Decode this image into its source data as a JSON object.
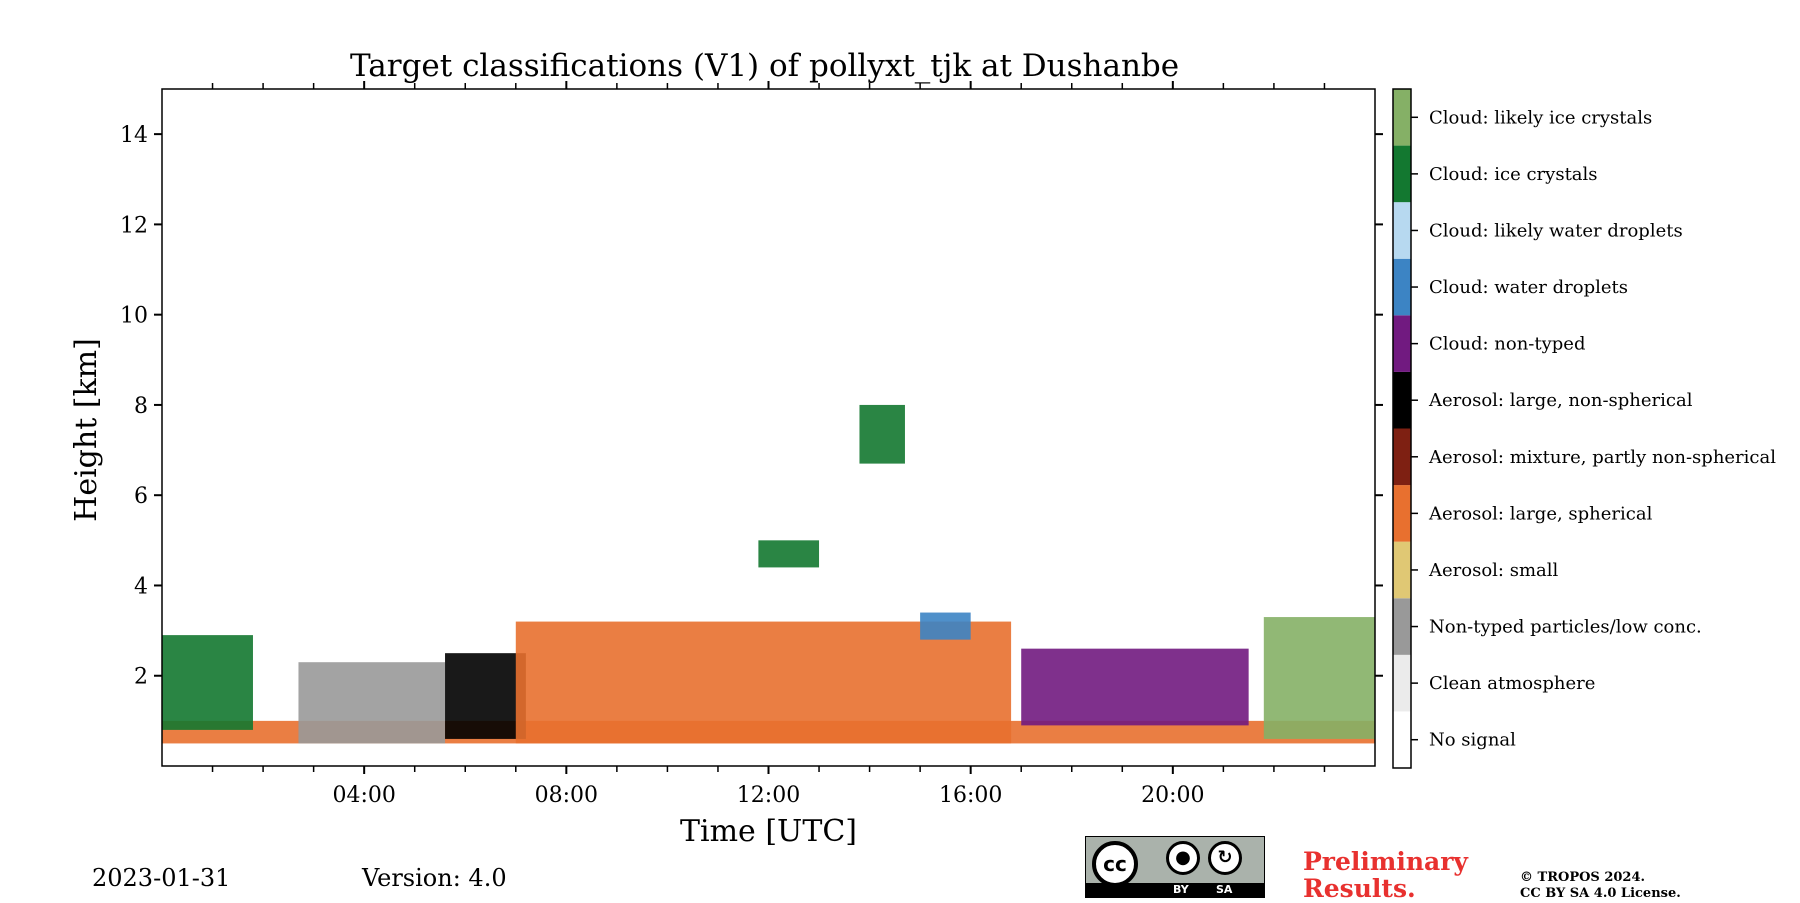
{
  "chart_data": {
    "type": "heatmap",
    "title": "Target classifications (V1) of pollyxt_tjk at Dushanbe",
    "xlabel": "Time [UTC]",
    "ylabel": "Height [km]",
    "xlim": [
      0,
      24
    ],
    "ylim": [
      0,
      15
    ],
    "xticks": [
      4,
      8,
      12,
      16,
      20
    ],
    "xtick_labels": [
      "04:00",
      "08:00",
      "12:00",
      "16:00",
      "20:00"
    ],
    "xminor": [
      1,
      2,
      3,
      5,
      6,
      7,
      9,
      10,
      11,
      13,
      14,
      15,
      17,
      18,
      19,
      21,
      22,
      23
    ],
    "yticks": [
      2,
      4,
      6,
      8,
      10,
      12,
      14
    ],
    "ytick_labels": [
      "2",
      "4",
      "6",
      "8",
      "10",
      "12",
      "14"
    ],
    "classes": [
      {
        "label": "No signal",
        "color": "#ffffff"
      },
      {
        "label": "Clean atmosphere",
        "color": "#ebebeb"
      },
      {
        "label": "Non-typed particles/low conc.",
        "color": "#999999"
      },
      {
        "label": "Aerosol: small",
        "color": "#e0c874"
      },
      {
        "label": "Aerosol: large, spherical",
        "color": "#e8702f"
      },
      {
        "label": "Aerosol: mixture, partly non-spherical",
        "color": "#7e2012"
      },
      {
        "label": "Aerosol: large, non-spherical",
        "color": "#000000"
      },
      {
        "label": "Cloud: non-typed",
        "color": "#711a80"
      },
      {
        "label": "Cloud: water droplets",
        "color": "#3c84c4"
      },
      {
        "label": "Cloud: likely water droplets",
        "color": "#b7d9f0"
      },
      {
        "label": "Cloud: ice crystals",
        "color": "#137830"
      },
      {
        "label": "Cloud: likely ice crystals",
        "color": "#85b066"
      }
    ],
    "regions": [
      {
        "class": "Aerosol: large, spherical",
        "t": [
          0,
          24
        ],
        "h": [
          0.5,
          1.0
        ]
      },
      {
        "class": "Cloud: ice crystals",
        "t": [
          0.0,
          1.8
        ],
        "h": [
          0.8,
          2.9
        ]
      },
      {
        "class": "Non-typed particles/low conc.",
        "t": [
          2.7,
          5.6
        ],
        "h": [
          0.5,
          2.3
        ]
      },
      {
        "class": "Aerosol: large, non-spherical",
        "t": [
          5.6,
          7.2
        ],
        "h": [
          0.6,
          2.5
        ]
      },
      {
        "class": "Aerosol: large, spherical",
        "t": [
          7.0,
          16.8
        ],
        "h": [
          0.5,
          3.2
        ]
      },
      {
        "class": "Cloud: water droplets",
        "t": [
          15.0,
          16.0
        ],
        "h": [
          2.8,
          3.4
        ]
      },
      {
        "class": "Cloud: ice crystals",
        "t": [
          13.8,
          14.7
        ],
        "h": [
          6.7,
          8.0
        ]
      },
      {
        "class": "Cloud: ice crystals",
        "t": [
          11.8,
          13.0
        ],
        "h": [
          4.4,
          5.0
        ]
      },
      {
        "class": "Cloud: non-typed",
        "t": [
          17.0,
          21.5
        ],
        "h": [
          0.9,
          2.6
        ]
      },
      {
        "class": "Cloud: likely ice crystals",
        "t": [
          21.8,
          24.0
        ],
        "h": [
          0.6,
          3.3
        ]
      }
    ]
  },
  "footer": {
    "date": "2023-01-31",
    "version": "Version: 4.0",
    "preliminary_line1": "Preliminary",
    "preliminary_line2": "Results.",
    "copyright_line1": "© TROPOS 2024.",
    "copyright_line2": "CC BY SA 4.0 License.",
    "cc_badge": {
      "main": "cc",
      "by": "BY",
      "sa": "SA"
    }
  }
}
